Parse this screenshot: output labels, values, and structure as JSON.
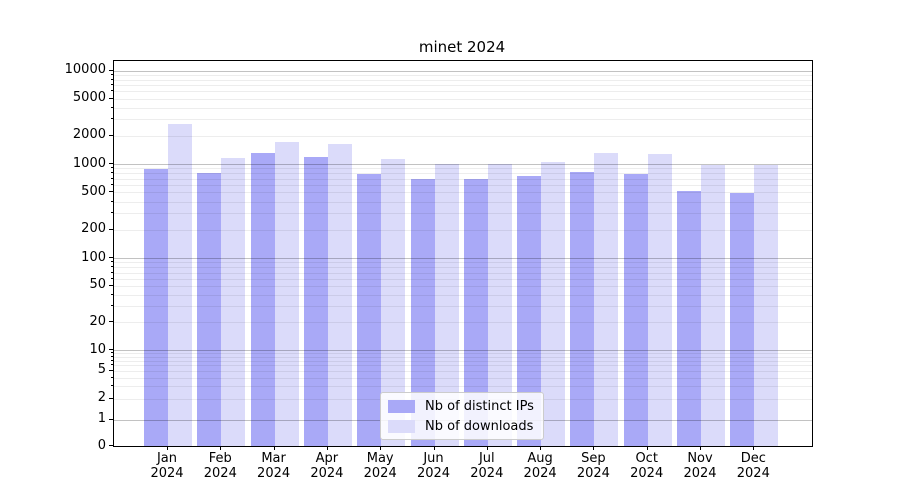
{
  "chart_data": {
    "type": "bar",
    "title": "minet 2024",
    "categories": [
      "Jan",
      "Feb",
      "Mar",
      "Apr",
      "May",
      "Jun",
      "Jul",
      "Aug",
      "Sep",
      "Oct",
      "Nov",
      "Dec"
    ],
    "year_label": "2024",
    "series": [
      {
        "name": "Nb of distinct IPs",
        "color": "#a9a9f7",
        "values": [
          880,
          810,
          1310,
          1190,
          780,
          690,
          690,
          745,
          825,
          790,
          515,
          495
        ]
      },
      {
        "name": "Nb of downloads",
        "color": "#dbdbfa",
        "values": [
          2700,
          1150,
          1700,
          1620,
          1120,
          1005,
          1000,
          1050,
          1320,
          1290,
          965,
          970
        ]
      }
    ],
    "y_ticks": [
      0,
      1,
      2,
      5,
      10,
      20,
      50,
      100,
      200,
      500,
      1000,
      2000,
      5000,
      10000
    ],
    "y_scale": "symlog",
    "ylim": [
      0,
      12500
    ],
    "xlabel": "",
    "ylabel": "",
    "grid": "on (log minor faint, decades darker)",
    "legend_position": "lower center"
  }
}
